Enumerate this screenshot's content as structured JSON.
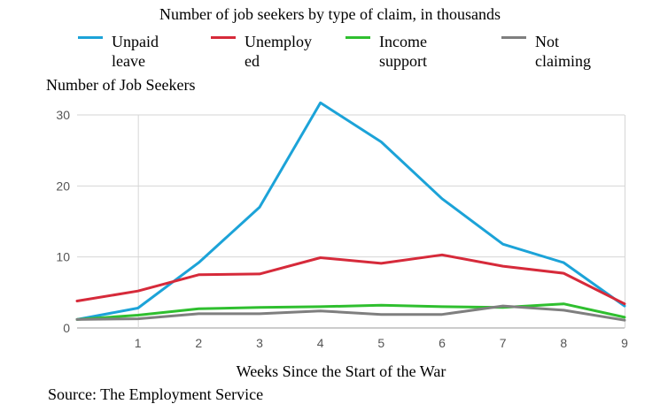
{
  "chart_data": {
    "type": "line",
    "title": "Number of job seekers by type of claim, in thousands",
    "ylabel": "Number of Job Seekers",
    "xlabel": "Weeks Since the Start of the War",
    "source": "Source: The Employment Service",
    "x": [
      0,
      1,
      2,
      3,
      4,
      5,
      6,
      7,
      8,
      9
    ],
    "xticks": [
      "1",
      "2",
      "3",
      "4",
      "5",
      "6",
      "7",
      "8",
      "9"
    ],
    "xtick_values": [
      1,
      2,
      3,
      4,
      5,
      6,
      7,
      8,
      9
    ],
    "yticks": [
      "0",
      "10",
      "20",
      "30"
    ],
    "ytick_values": [
      0,
      10,
      20,
      30
    ],
    "xlim": [
      0,
      9
    ],
    "ylim": [
      0,
      30
    ],
    "grid": true,
    "legend_position": "top",
    "series": [
      {
        "name": "Unpaid leave",
        "name_lines": [
          "Unpaid",
          "leave"
        ],
        "color": "#1ca3d8",
        "values": [
          1.2,
          2.8,
          9.2,
          17.0,
          31.7,
          26.2,
          18.2,
          11.8,
          9.2,
          3.1
        ]
      },
      {
        "name": "Unemployed",
        "name_lines": [
          "Unemploy",
          "ed"
        ],
        "color": "#d62a3a",
        "values": [
          3.8,
          5.2,
          7.5,
          7.6,
          9.9,
          9.1,
          10.3,
          8.7,
          7.7,
          3.4
        ]
      },
      {
        "name": "Income support",
        "name_lines": [
          "Income",
          "support"
        ],
        "color": "#2fbf2f",
        "values": [
          1.2,
          1.8,
          2.7,
          2.9,
          3.0,
          3.2,
          3.0,
          2.9,
          3.4,
          1.5
        ]
      },
      {
        "name": "Not claiming",
        "name_lines": [
          "Not",
          "claiming"
        ],
        "color": "#7f7f7f",
        "values": [
          1.2,
          1.3,
          2.0,
          2.0,
          2.4,
          1.9,
          1.9,
          3.1,
          2.5,
          1.1
        ]
      }
    ]
  }
}
